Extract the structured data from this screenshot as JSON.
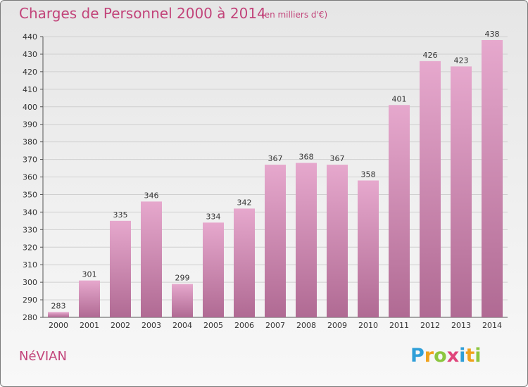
{
  "header": {
    "title": "Charges de Personnel 2000 à 2014",
    "subtitle": "(en milliers d'€)"
  },
  "footer": {
    "place": "NéVIAN",
    "logo": "Proxiti",
    "logo_letters": [
      {
        "ch": "P",
        "color": "#2f9fd8"
      },
      {
        "ch": "r",
        "color": "#f0a21c"
      },
      {
        "ch": "o",
        "color": "#8cc63f"
      },
      {
        "ch": "x",
        "color": "#e0457b"
      },
      {
        "ch": "i",
        "color": "#2f9fd8"
      },
      {
        "ch": "t",
        "color": "#f0a21c"
      },
      {
        "ch": "i",
        "color": "#8cc63f"
      }
    ]
  },
  "colors": {
    "bar_top": "#e6a8cd",
    "bar_bottom": "#b06a93",
    "accent": "#c2447a",
    "grid": "#d0d0d0"
  },
  "chart_data": {
    "type": "bar",
    "title": "Charges de Personnel 2000 à 2014",
    "subtitle": "(en milliers d'€)",
    "categories": [
      "2000",
      "2001",
      "2002",
      "2003",
      "2004",
      "2005",
      "2006",
      "2007",
      "2008",
      "2009",
      "2010",
      "2011",
      "2012",
      "2013",
      "2014"
    ],
    "values": [
      283,
      301,
      335,
      346,
      299,
      334,
      342,
      367,
      368,
      367,
      358,
      401,
      426,
      423,
      438
    ],
    "ylim": [
      280,
      440
    ],
    "yticks": [
      280,
      290,
      300,
      310,
      320,
      330,
      340,
      350,
      360,
      370,
      380,
      390,
      400,
      410,
      420,
      430,
      440
    ],
    "grid": true,
    "data_labels": true
  }
}
